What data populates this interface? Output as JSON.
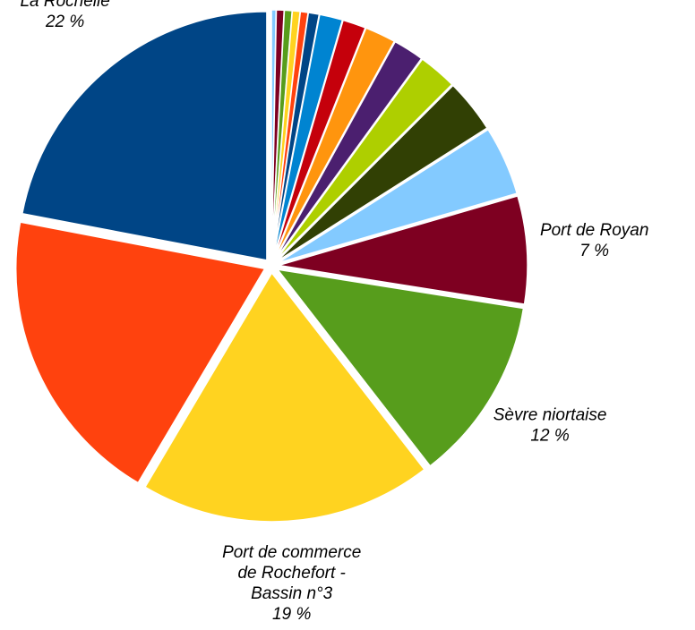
{
  "chart_data": {
    "type": "pie",
    "categories": [
      null,
      null,
      null,
      null,
      null,
      null,
      null,
      null,
      null,
      null,
      null,
      null,
      null,
      "Port de Royan",
      "Sèvre niortaise",
      "Port de commerce de Rochefort - Bassin n°3",
      null,
      "La Rochelle"
    ],
    "values": [
      0.3,
      0.5,
      0.5,
      0.5,
      0.5,
      0.7,
      1.5,
      1.5,
      2,
      2,
      2.5,
      3.5,
      4.5,
      7,
      12,
      19,
      19.5,
      22
    ],
    "value_labels": [
      null,
      null,
      null,
      null,
      null,
      null,
      null,
      null,
      null,
      null,
      null,
      null,
      null,
      "7 %",
      "12 %",
      "19 %",
      null,
      "22 %"
    ],
    "colors": [
      "#83caff",
      "#7e0021",
      "#579d1c",
      "#ffd320",
      "#ff420e",
      "#004586",
      "#0084d1",
      "#c5000b",
      "#ff950e",
      "#4b1f6f",
      "#aecf00",
      "#314004",
      "#83caff",
      "#7e0021",
      "#579d1c",
      "#ffd320",
      "#ff420e",
      "#004586"
    ],
    "exploded": true
  }
}
